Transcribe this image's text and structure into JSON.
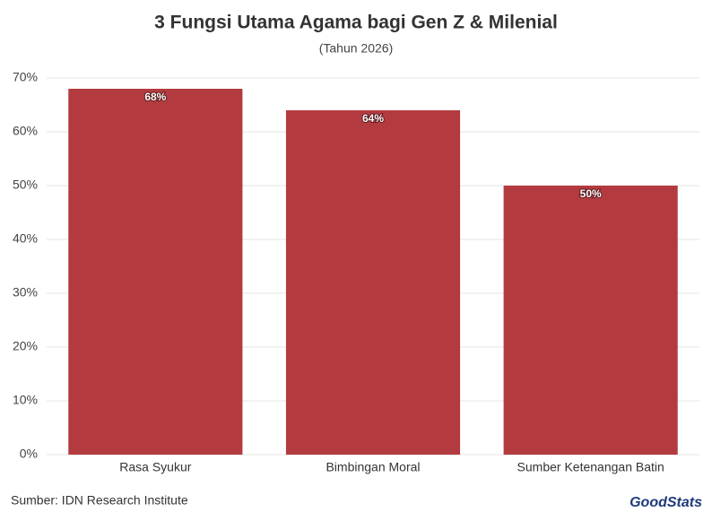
{
  "chart_data": {
    "type": "bar",
    "title": "3 Fungsi Utama Agama bagi Gen Z & Milenial",
    "subtitle": "(Tahun 2026)",
    "categories": [
      "Rasa Syukur",
      "Bimbingan Moral",
      "Sumber Ketenangan Batin"
    ],
    "values": [
      68,
      64,
      50
    ],
    "value_labels": [
      "68%",
      "64%",
      "50%"
    ],
    "color": "#b33b40",
    "ylim": [
      0,
      70
    ],
    "yticks": [
      {
        "value": 0,
        "label": "0%"
      },
      {
        "value": 10,
        "label": "10%"
      },
      {
        "value": 20,
        "label": "20%"
      },
      {
        "value": 30,
        "label": "30%"
      },
      {
        "value": 40,
        "label": "40%"
      },
      {
        "value": 50,
        "label": "50%"
      },
      {
        "value": 60,
        "label": "60%"
      },
      {
        "value": 70,
        "label": "70%"
      }
    ],
    "grid": true,
    "source": "Sumber: IDN Research Institute",
    "logo": "GoodStats"
  }
}
